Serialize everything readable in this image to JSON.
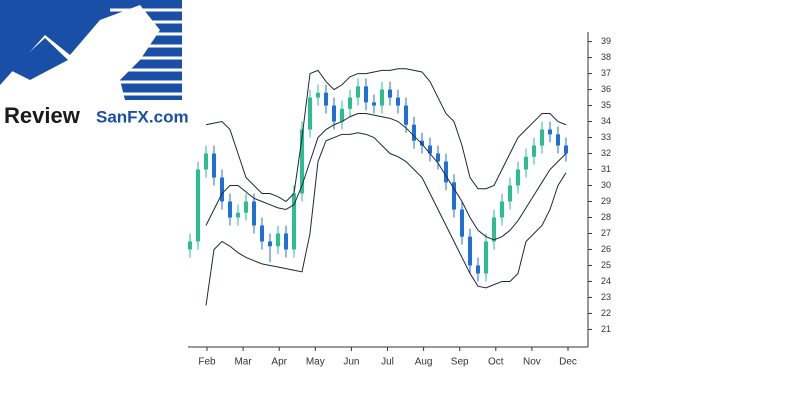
{
  "logo": {
    "word1": "Review",
    "word2": "SanFX.com"
  },
  "chart_data": {
    "type": "candlestick",
    "categories": [
      "Feb",
      "Mar",
      "Apr",
      "May",
      "Jun",
      "Jul",
      "Aug",
      "Sep",
      "Oct",
      "Nov",
      "Dec"
    ],
    "ylim": [
      19.9,
      39.6
    ],
    "yticks": [
      21,
      22,
      23,
      24,
      25,
      26,
      27,
      28,
      29,
      30,
      31,
      32,
      33,
      34,
      35,
      36,
      37,
      38,
      39
    ],
    "up_color": "#2bbf8f",
    "down_color": "#1f6fd8",
    "band_color": "#1e2740",
    "open": [
      26,
      26.5,
      31,
      32,
      30.5,
      29,
      28,
      28.3,
      29,
      27.5,
      26.5,
      26.2,
      27,
      26,
      29.5,
      33.5,
      35.5,
      35.8,
      35,
      34,
      34.8,
      35.5,
      36.2,
      35.2,
      35,
      36,
      35.5,
      35,
      33.8,
      32.8,
      32.5,
      32,
      31.5,
      30.2,
      28.5,
      26.8,
      25,
      24.5,
      26.5,
      28,
      29,
      30,
      31,
      31.8,
      32.5,
      33.5,
      33.2,
      32.5
    ],
    "high": [
      27,
      31.5,
      32.5,
      32.5,
      31,
      29.5,
      28.8,
      29.5,
      29.5,
      28,
      27,
      27.5,
      27.5,
      30,
      34,
      36,
      36.3,
      36.3,
      35.5,
      35.3,
      36,
      36.7,
      36.7,
      35.7,
      36.5,
      36.5,
      36,
      35.5,
      34.3,
      33.3,
      33,
      32.5,
      32,
      30.7,
      29,
      27.3,
      25.5,
      27,
      28.5,
      29.5,
      30.5,
      31.5,
      32.3,
      33,
      34,
      34,
      33.7,
      33
    ],
    "low": [
      25.5,
      26,
      30.5,
      30,
      28.5,
      27.5,
      27.5,
      27.8,
      27,
      26,
      25.2,
      25.7,
      25.5,
      25.5,
      29,
      33,
      35,
      34.5,
      33.5,
      33.5,
      34.3,
      35,
      34.7,
      34.5,
      34.5,
      35,
      34.5,
      33.3,
      32.3,
      32,
      31.5,
      31,
      29.7,
      28,
      26.3,
      24.5,
      24,
      24,
      26,
      27.5,
      28.5,
      29.5,
      30.5,
      31.3,
      32,
      32.7,
      32,
      31.5
    ],
    "close": [
      26.5,
      31,
      32,
      30.5,
      29,
      28,
      28.3,
      29,
      27.5,
      26.5,
      26.2,
      27,
      26,
      29.5,
      33.5,
      35.5,
      35.8,
      35,
      34,
      34.8,
      35.5,
      36.2,
      35.2,
      35,
      36,
      35.5,
      35,
      33.8,
      32.8,
      32.5,
      32,
      31.5,
      30.2,
      28.5,
      26.8,
      25,
      24.5,
      26.5,
      28,
      29,
      30,
      31,
      31.8,
      32.5,
      33.5,
      33.2,
      32.5,
      32
    ],
    "upper": [
      null,
      null,
      33.8,
      33.9,
      34,
      33.5,
      32,
      30.5,
      30,
      29.5,
      29.5,
      29.3,
      29,
      29.5,
      33,
      37,
      37.2,
      36.5,
      36,
      36.3,
      36.8,
      37,
      37,
      37.1,
      37.2,
      37.2,
      37.3,
      37.3,
      37.2,
      37.1,
      36.5,
      35.5,
      34.5,
      34,
      32.5,
      30.5,
      29.8,
      29.8,
      30,
      31,
      32,
      33,
      33.5,
      34,
      34.5,
      34.5,
      34,
      33.8
    ],
    "middle": [
      null,
      null,
      27.5,
      28.5,
      29.5,
      30,
      30,
      29.6,
      29.2,
      29,
      28.8,
      28.6,
      28.5,
      28.8,
      30,
      31.5,
      33,
      33.5,
      33.8,
      34,
      34.3,
      34.5,
      34.5,
      34.4,
      34.3,
      34.2,
      34,
      33.6,
      33.1,
      32.6,
      32,
      31.4,
      30.6,
      29.8,
      29,
      28,
      27.2,
      26.8,
      26.6,
      26.8,
      27.2,
      27.8,
      28.6,
      29.4,
      30.2,
      31,
      31.5,
      32
    ],
    "lower": [
      null,
      null,
      22.5,
      26,
      26.5,
      26.2,
      25.8,
      25.5,
      25.3,
      25.1,
      25,
      24.9,
      24.8,
      24.7,
      24.6,
      27,
      31.5,
      32.8,
      33,
      33.2,
      33.2,
      33.3,
      33.2,
      33,
      32.5,
      32,
      31.8,
      31.5,
      31,
      30.5,
      29.5,
      28.5,
      27.5,
      26.5,
      25.5,
      24.5,
      23.7,
      23.6,
      23.8,
      24,
      24,
      24.5,
      26.5,
      27,
      27.5,
      28.5,
      30,
      30.8
    ]
  }
}
